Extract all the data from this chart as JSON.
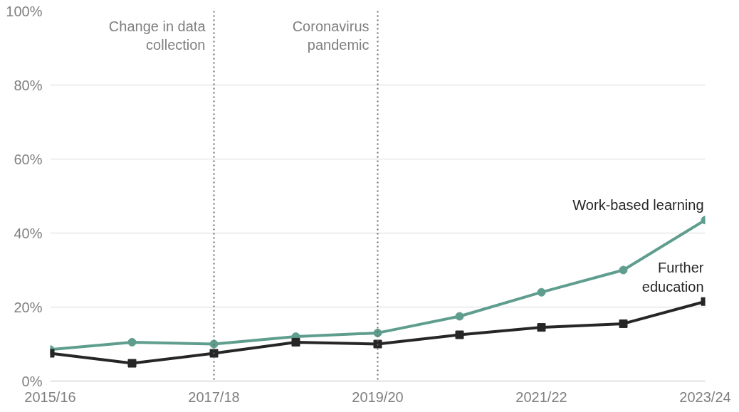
{
  "chart_data": {
    "type": "line",
    "categories": [
      "2015/16",
      null,
      "2017/18",
      null,
      "2019/20",
      null,
      "2021/22",
      null,
      "2023/24"
    ],
    "ylim": [
      0,
      100
    ],
    "yticks": [
      {
        "value": 0,
        "label": "0%"
      },
      {
        "value": 20,
        "label": "20%"
      },
      {
        "value": 40,
        "label": "40%"
      },
      {
        "value": 60,
        "label": "60%"
      },
      {
        "value": 80,
        "label": "80%"
      },
      {
        "value": 100,
        "label": "100%"
      }
    ],
    "grid": "y",
    "line_style": "solid",
    "ref_lines": [
      {
        "axis": "x",
        "value": "2017/18",
        "label": "Change in data collection",
        "line_style": "dotted",
        "color": "#666666"
      },
      {
        "axis": "x",
        "value": "2019/20",
        "label": "Coronavirus pandemic",
        "line_style": "dotted",
        "color": "#666666"
      }
    ],
    "series": [
      {
        "name": "Work-based learning",
        "color": "#5f9e8f",
        "marker": "circle",
        "values": [
          8.5,
          10.5,
          10,
          12,
          13,
          17.5,
          24,
          30,
          43.5
        ]
      },
      {
        "name": "Further education",
        "color": "#262626",
        "marker": "square",
        "values": [
          7.5,
          4.8,
          7.5,
          10.5,
          10,
          12.5,
          14.5,
          15.5,
          21.5
        ]
      }
    ]
  }
}
